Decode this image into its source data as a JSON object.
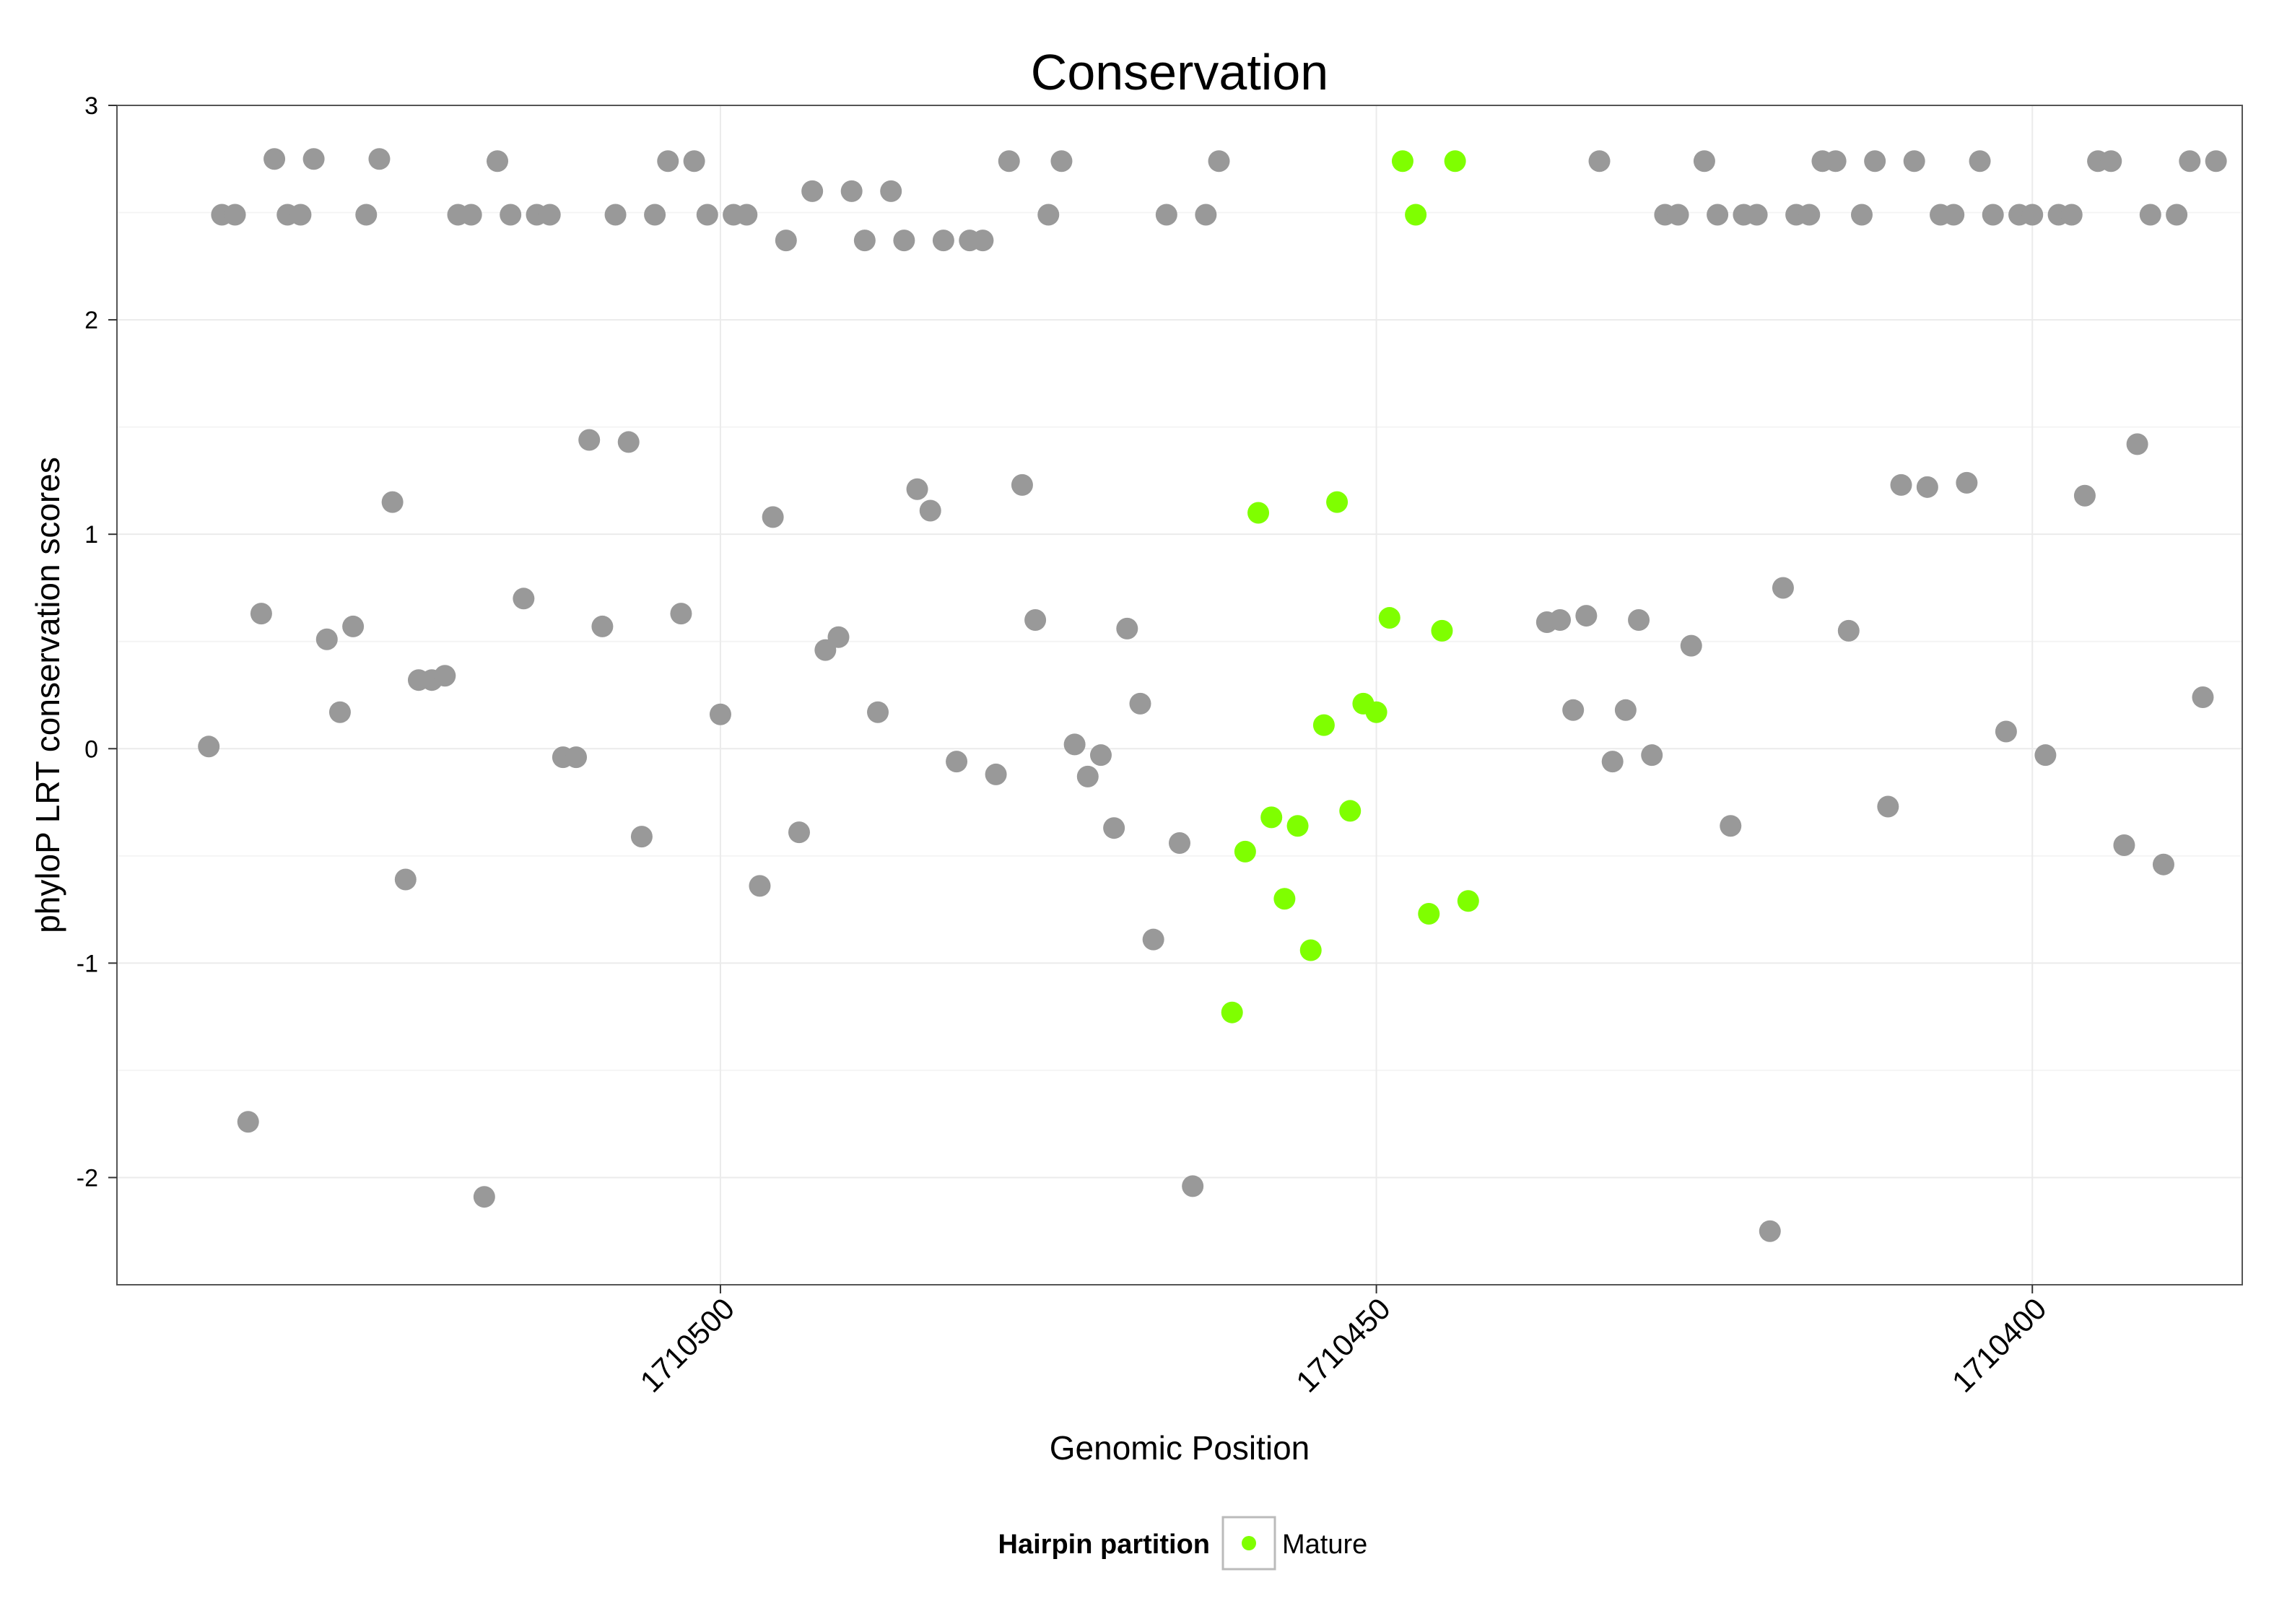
{
  "chart_data": {
    "type": "scatter",
    "title": "Conservation",
    "xlabel": "Genomic Position",
    "ylabel": "phyloP LRT conservation scores",
    "xlim": [
      1710546,
      1710384
    ],
    "ylim": [
      -2.5,
      3.0
    ],
    "x_reversed": true,
    "grid": true,
    "xticks": [
      1710500,
      1710450,
      1710400
    ],
    "yticks": [
      -2,
      -1,
      0,
      1,
      2,
      3
    ],
    "legend": {
      "title": "Hairpin partition",
      "position": "bottom",
      "entries": [
        {
          "label": "Mature",
          "color": "#7fff00"
        }
      ]
    },
    "series": [
      {
        "name": "",
        "color": "#999999",
        "points": [
          [
            1710539,
            0.01
          ],
          [
            1710538,
            2.49
          ],
          [
            1710537,
            2.49
          ],
          [
            1710536,
            -1.74
          ],
          [
            1710535,
            0.63
          ],
          [
            1710534,
            2.75
          ],
          [
            1710533,
            2.49
          ],
          [
            1710532,
            2.49
          ],
          [
            1710531,
            2.75
          ],
          [
            1710530,
            0.51
          ],
          [
            1710529,
            0.17
          ],
          [
            1710528,
            0.57
          ],
          [
            1710527,
            2.49
          ],
          [
            1710526,
            2.75
          ],
          [
            1710525,
            1.15
          ],
          [
            1710524,
            -0.61
          ],
          [
            1710523,
            0.32
          ],
          [
            1710522,
            0.32
          ],
          [
            1710521,
            0.34
          ],
          [
            1710520,
            2.49
          ],
          [
            1710519,
            2.49
          ],
          [
            1710518,
            -2.09
          ],
          [
            1710517,
            2.74
          ],
          [
            1710516,
            2.49
          ],
          [
            1710515,
            0.7
          ],
          [
            1710514,
            2.49
          ],
          [
            1710513,
            2.49
          ],
          [
            1710512,
            -0.04
          ],
          [
            1710511,
            -0.04
          ],
          [
            1710510,
            1.44
          ],
          [
            1710509,
            0.57
          ],
          [
            1710508,
            2.49
          ],
          [
            1710507,
            1.43
          ],
          [
            1710506,
            -0.41
          ],
          [
            1710505,
            2.49
          ],
          [
            1710504,
            2.74
          ],
          [
            1710503,
            0.63
          ],
          [
            1710502,
            2.74
          ],
          [
            1710501,
            2.49
          ],
          [
            1710500,
            0.16
          ],
          [
            1710499,
            2.49
          ],
          [
            1710498,
            2.49
          ],
          [
            1710497,
            -0.64
          ],
          [
            1710496,
            1.08
          ],
          [
            1710495,
            2.37
          ],
          [
            1710494,
            -0.39
          ],
          [
            1710493,
            2.6
          ],
          [
            1710492,
            0.46
          ],
          [
            1710491,
            0.52
          ],
          [
            1710490,
            2.6
          ],
          [
            1710489,
            2.37
          ],
          [
            1710488,
            0.17
          ],
          [
            1710487,
            2.6
          ],
          [
            1710486,
            2.37
          ],
          [
            1710485,
            1.21
          ],
          [
            1710484,
            1.11
          ],
          [
            1710483,
            2.37
          ],
          [
            1710482,
            -0.06
          ],
          [
            1710481,
            2.37
          ],
          [
            1710480,
            2.37
          ],
          [
            1710479,
            -0.12
          ],
          [
            1710478,
            2.74
          ],
          [
            1710477,
            1.23
          ],
          [
            1710476,
            0.6
          ],
          [
            1710475,
            2.49
          ],
          [
            1710474,
            2.74
          ],
          [
            1710473,
            0.02
          ],
          [
            1710472,
            -0.13
          ],
          [
            1710471,
            -0.03
          ],
          [
            1710470,
            -0.37
          ],
          [
            1710469,
            0.56
          ],
          [
            1710468,
            0.21
          ],
          [
            1710467,
            -0.89
          ],
          [
            1710466,
            2.49
          ],
          [
            1710465,
            -0.44
          ],
          [
            1710464,
            -2.04
          ],
          [
            1710463,
            2.49
          ],
          [
            1710462,
            2.74
          ],
          [
            1710437,
            0.59
          ],
          [
            1710436,
            0.6
          ],
          [
            1710435,
            0.18
          ],
          [
            1710434,
            0.62
          ],
          [
            1710433,
            2.74
          ],
          [
            1710432,
            -0.06
          ],
          [
            1710431,
            0.18
          ],
          [
            1710430,
            0.6
          ],
          [
            1710429,
            -0.03
          ],
          [
            1710428,
            2.49
          ],
          [
            1710427,
            2.49
          ],
          [
            1710426,
            0.48
          ],
          [
            1710425,
            2.74
          ],
          [
            1710424,
            2.49
          ],
          [
            1710423,
            -0.36
          ],
          [
            1710422,
            2.49
          ],
          [
            1710421,
            2.49
          ],
          [
            1710420,
            -2.25
          ],
          [
            1710419,
            0.75
          ],
          [
            1710418,
            2.49
          ],
          [
            1710417,
            2.49
          ],
          [
            1710416,
            2.74
          ],
          [
            1710415,
            2.74
          ],
          [
            1710414,
            0.55
          ],
          [
            1710413,
            2.49
          ],
          [
            1710412,
            2.74
          ],
          [
            1710411,
            -0.27
          ],
          [
            1710410,
            1.23
          ],
          [
            1710409,
            2.74
          ],
          [
            1710408,
            1.22
          ],
          [
            1710407,
            2.49
          ],
          [
            1710406,
            2.49
          ],
          [
            1710405,
            1.24
          ],
          [
            1710404,
            2.74
          ],
          [
            1710403,
            2.49
          ],
          [
            1710402,
            0.08
          ],
          [
            1710401,
            2.49
          ],
          [
            1710400,
            2.49
          ],
          [
            1710399,
            -0.03
          ],
          [
            1710398,
            2.49
          ],
          [
            1710397,
            2.49
          ],
          [
            1710396,
            1.18
          ],
          [
            1710395,
            2.74
          ],
          [
            1710394,
            2.74
          ],
          [
            1710393,
            -0.45
          ],
          [
            1710392,
            1.42
          ],
          [
            1710391,
            2.49
          ],
          [
            1710390,
            -0.54
          ],
          [
            1710389,
            2.49
          ],
          [
            1710388,
            2.74
          ],
          [
            1710387,
            0.24
          ],
          [
            1710386,
            2.74
          ]
        ]
      },
      {
        "name": "Mature",
        "color": "#7fff00",
        "points": [
          [
            1710461,
            -1.23
          ],
          [
            1710460,
            -0.48
          ],
          [
            1710459,
            1.1
          ],
          [
            1710458,
            -0.32
          ],
          [
            1710457,
            -0.7
          ],
          [
            1710456,
            -0.36
          ],
          [
            1710455,
            -0.94
          ],
          [
            1710454,
            0.11
          ],
          [
            1710453,
            1.15
          ],
          [
            1710452,
            -0.29
          ],
          [
            1710451,
            0.21
          ],
          [
            1710450,
            0.17
          ],
          [
            1710449,
            0.61
          ],
          [
            1710448,
            2.74
          ],
          [
            1710447,
            2.49
          ],
          [
            1710446,
            -0.77
          ],
          [
            1710445,
            0.55
          ],
          [
            1710444,
            2.74
          ],
          [
            1710443,
            -0.71
          ]
        ]
      }
    ]
  }
}
